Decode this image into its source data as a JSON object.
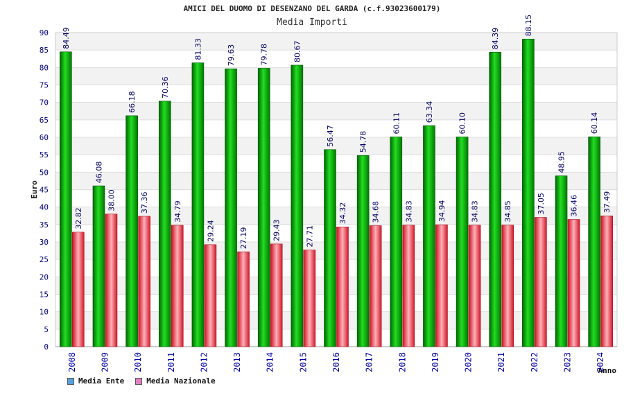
{
  "chart_data": {
    "type": "bar",
    "title": "AMICI DEL DUOMO DI DESENZANO DEL GARDA (c.f.93023600179)",
    "subtitle": "Media Importi",
    "ylabel": "Euro",
    "xlabel": "Anno",
    "ylim": [
      0,
      90
    ],
    "ytick_step": 5,
    "grid": true,
    "categories": [
      "2008",
      "2009",
      "2010",
      "2011",
      "2012",
      "2013",
      "2014",
      "2015",
      "2016",
      "2017",
      "2018",
      "2019",
      "2020",
      "2021",
      "2022",
      "2023",
      "2024"
    ],
    "series": [
      {
        "name": "Media Ente",
        "color": "#00aa00",
        "legend_color": "#5aa0e0",
        "values": [
          84.49,
          46.08,
          66.18,
          70.36,
          81.33,
          79.63,
          79.78,
          80.67,
          56.47,
          54.78,
          60.11,
          63.34,
          60.1,
          84.39,
          88.15,
          48.95,
          60.14
        ]
      },
      {
        "name": "Media Nazionale",
        "color": "#e02030",
        "legend_color": "#e080c0",
        "values": [
          32.82,
          38.0,
          37.36,
          34.79,
          29.24,
          27.19,
          29.43,
          27.71,
          34.32,
          34.68,
          34.83,
          34.94,
          34.83,
          34.85,
          37.05,
          36.46,
          37.49
        ]
      }
    ]
  }
}
